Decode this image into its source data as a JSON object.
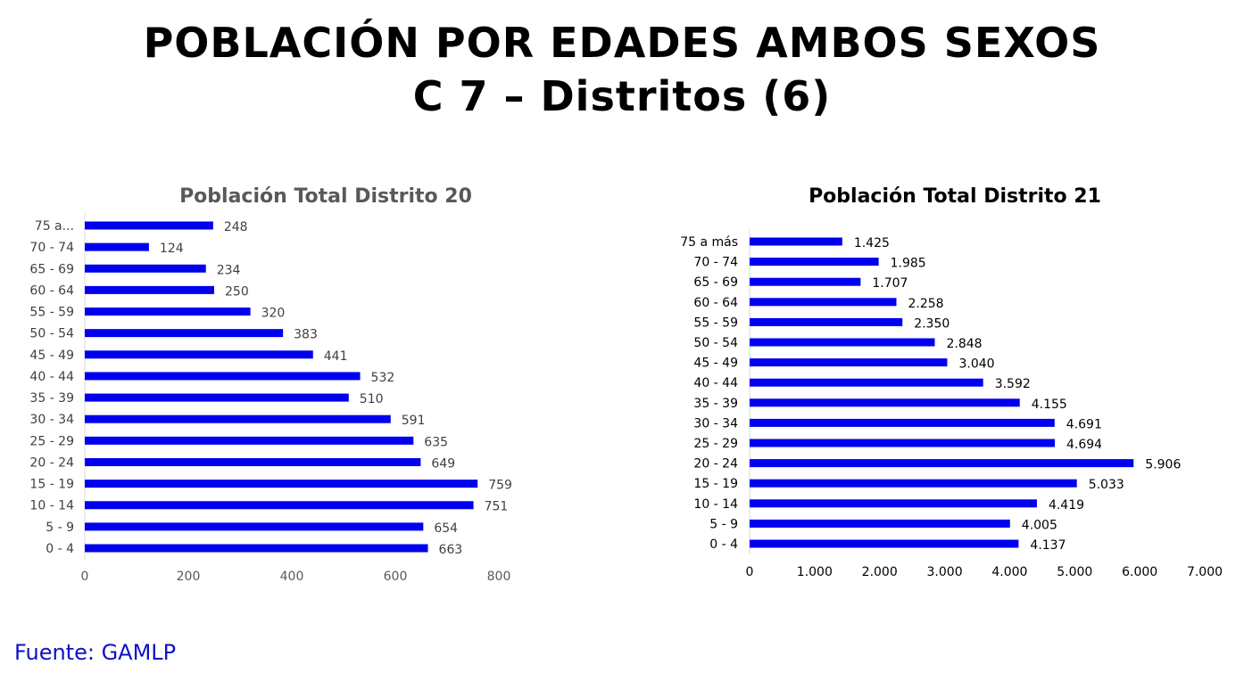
{
  "title_line1": "POBLACIÓN POR EDADES AMBOS SEXOS",
  "title_line2": "C 7 – Distritos (6)",
  "source": "Fuente: GAMLP",
  "colors": {
    "bar": "#0000ee",
    "title1": "#595959",
    "title2": "#000000",
    "source": "#1010c8"
  },
  "chart_data": [
    {
      "type": "bar",
      "orientation": "horizontal",
      "title": "Población Total Distrito 20",
      "categories": [
        "0 - 4",
        "5 - 9",
        "10 - 14",
        "15 - 19",
        "20 - 24",
        "25 - 29",
        "30 - 34",
        "35 - 39",
        "40 - 44",
        "45 - 49",
        "50 - 54",
        "55 - 59",
        "60 - 64",
        "65 - 69",
        "70 - 74",
        "75 a..."
      ],
      "values": [
        663,
        654,
        751,
        759,
        649,
        635,
        591,
        510,
        532,
        441,
        383,
        320,
        250,
        234,
        124,
        248
      ],
      "value_labels": [
        "663",
        "654",
        "751",
        "759",
        "649",
        "635",
        "591",
        "510",
        "532",
        "441",
        "383",
        "320",
        "250",
        "234",
        "124",
        "248"
      ],
      "xlim": [
        0,
        800
      ],
      "xticks": [
        0,
        200,
        400,
        600,
        800
      ],
      "xtick_labels": [
        "0",
        "200",
        "400",
        "600",
        "800"
      ],
      "grid": false,
      "legend": "none"
    },
    {
      "type": "bar",
      "orientation": "horizontal",
      "title": "Población Total Distrito 21",
      "categories": [
        "0 - 4",
        "5 - 9",
        "10 - 14",
        "15 - 19",
        "20 - 24",
        "25 - 29",
        "30 - 34",
        "35 - 39",
        "40 - 44",
        "45 - 49",
        "50 - 54",
        "55 - 59",
        "60 - 64",
        "65 - 69",
        "70 - 74",
        "75 a más"
      ],
      "values": [
        4137,
        4005,
        4419,
        5033,
        5906,
        4694,
        4691,
        4155,
        3592,
        3040,
        2848,
        2350,
        2258,
        1707,
        1985,
        1425
      ],
      "value_labels": [
        "4.137",
        "4.005",
        "4.419",
        "5.033",
        "5.906",
        "4.694",
        "4.691",
        "4.155",
        "3.592",
        "3.040",
        "2.848",
        "2.350",
        "2.258",
        "1.707",
        "1.985",
        "1.425"
      ],
      "xlim": [
        0,
        7000
      ],
      "xticks": [
        0,
        1000,
        2000,
        3000,
        4000,
        5000,
        6000,
        7000
      ],
      "xtick_labels": [
        "0",
        "1.000",
        "2.000",
        "3.000",
        "4.000",
        "5.000",
        "6.000",
        "7.000"
      ],
      "grid": false,
      "legend": "none"
    }
  ]
}
